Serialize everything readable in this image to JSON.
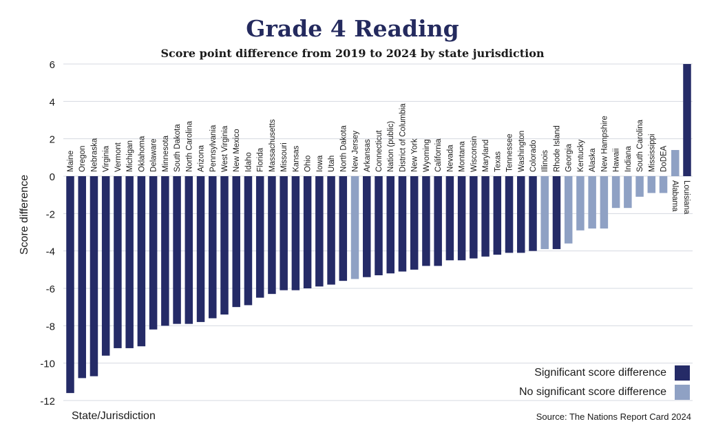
{
  "colors": {
    "significant": "#252b67",
    "not_significant": "#8fa1c4",
    "text": "#1a1a1a",
    "title": "#242a5e"
  },
  "source": "Source: The Nations Report Card 2024",
  "chart_data": {
    "type": "bar",
    "title": "Grade 4 Reading",
    "subtitle": "Score point difference from 2019 to 2024 by state jurisdiction",
    "xlabel": "State/Jurisdiction",
    "ylabel": "Score difference",
    "ylim": [
      -12,
      6
    ],
    "yticks": [
      6,
      4,
      2,
      0,
      -2,
      -4,
      -6,
      -8,
      -10,
      -12
    ],
    "grid": "horizontal",
    "legend_position": "bottom-right",
    "legend": [
      {
        "label": "Significant score difference",
        "significant": true
      },
      {
        "label": "No significant score difference",
        "significant": false
      }
    ],
    "categories": [
      "Maine",
      "Oregon",
      "Nebraska",
      "Virginia",
      "Vermont",
      "Michigan",
      "Oklahoma",
      "Delaware",
      "Minnesota",
      "South Dakota",
      "North Carolina",
      "Arizona",
      "Pennsylvania",
      "West Virginia",
      "New Mexico",
      "Idaho",
      "Florida",
      "Massachusetts",
      "Missouri",
      "Kansas",
      "Ohio",
      "Iowa",
      "Utah",
      "North Dakota",
      "New Jersey",
      "Arkansas",
      "Connecticut",
      "Nation (public)",
      "District of Columbia",
      "New York",
      "Wyoming",
      "California",
      "Nevada",
      "Montana",
      "Wisconsin",
      "Maryland",
      "Texas",
      "Tennessee",
      "Washington",
      "Colorado",
      "Illinois",
      "Rhode Island",
      "Georgia",
      "Kentucky",
      "Alaska",
      "New Hampshire",
      "Hawaii",
      "Indiana",
      "South Carolina",
      "Mississippi",
      "DoDEA",
      "Alabama",
      "Louisiana"
    ],
    "values": [
      -11.6,
      -10.8,
      -10.7,
      -9.6,
      -9.2,
      -9.2,
      -9.1,
      -8.2,
      -8.0,
      -7.9,
      -7.9,
      -7.8,
      -7.6,
      -7.4,
      -7.0,
      -6.9,
      -6.5,
      -6.3,
      -6.1,
      -6.1,
      -6.0,
      -5.9,
      -5.8,
      -5.6,
      -5.5,
      -5.4,
      -5.3,
      -5.2,
      -5.1,
      -5.0,
      -4.8,
      -4.8,
      -4.5,
      -4.5,
      -4.4,
      -4.3,
      -4.2,
      -4.1,
      -4.1,
      -4.0,
      -3.9,
      -3.9,
      -3.6,
      -2.9,
      -2.8,
      -2.8,
      -1.7,
      -1.7,
      -1.1,
      -0.9,
      -0.9,
      1.4,
      6.0
    ],
    "significant": [
      true,
      true,
      true,
      true,
      true,
      true,
      true,
      true,
      true,
      true,
      true,
      true,
      true,
      true,
      true,
      true,
      true,
      true,
      true,
      true,
      true,
      true,
      true,
      true,
      false,
      true,
      true,
      true,
      true,
      true,
      true,
      true,
      true,
      true,
      true,
      true,
      true,
      true,
      true,
      true,
      false,
      true,
      false,
      false,
      false,
      false,
      false,
      false,
      false,
      false,
      false,
      false,
      true
    ]
  }
}
